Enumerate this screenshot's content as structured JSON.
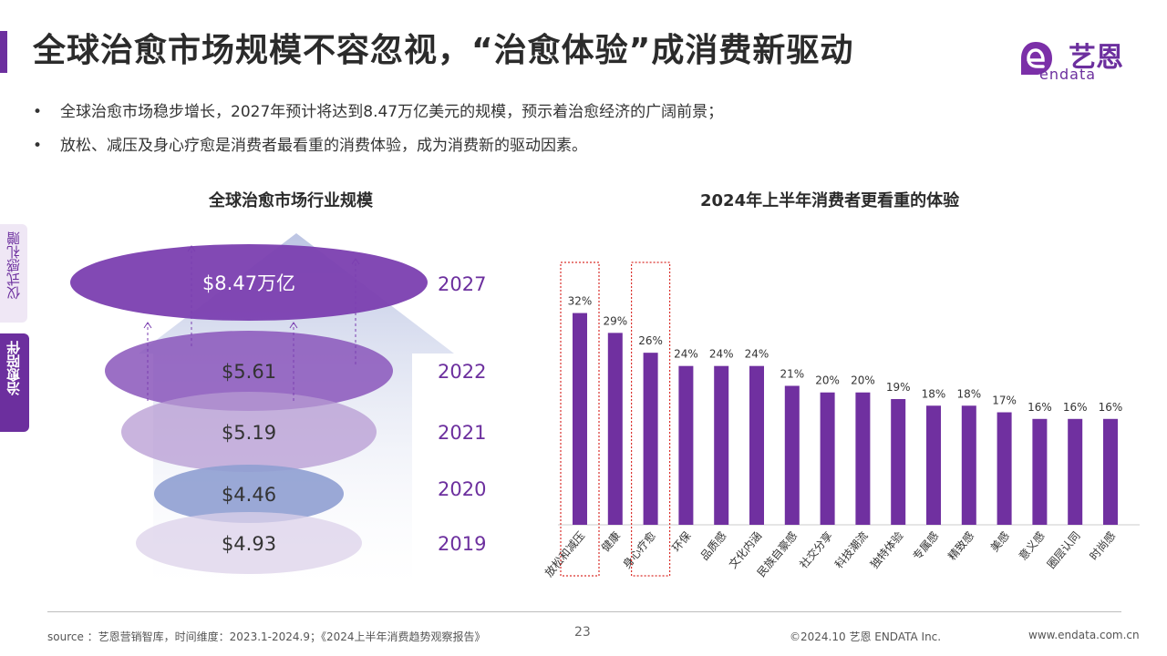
{
  "title": "全球治愈市场规模不容忽视，“治愈体验”成消费新驱动",
  "logo": {
    "cn": "艺恩",
    "en": "endata"
  },
  "bullets": [
    "全球治愈市场稳步增长，2027年预计将达到8.47万亿美元的规模，预示着治愈经济的广阔前景；",
    "放松、减压及身心疗愈是消费者最看重的消费体验，成为消费新的驱动因素。"
  ],
  "bullet_mark": "•",
  "side_tabs": [
    {
      "label": "仪式感礼赠",
      "active": false
    },
    {
      "label": "治愈陪伴",
      "active": true
    }
  ],
  "colors": {
    "accent": "#6c2f9e",
    "bar": "#7030a0",
    "highlight_box": "#d9302c"
  },
  "chart_data": [
    {
      "type": "bar",
      "title": "全球治愈市场行业规模",
      "categories": [
        "2019",
        "2020",
        "2021",
        "2022",
        "2027"
      ],
      "value_labels": [
        "$4.93",
        "$4.46",
        "$5.19",
        "$5.61",
        "$8.47万亿"
      ],
      "values": [
        4.93,
        4.46,
        5.19,
        5.61,
        8.47
      ],
      "unit": "万亿美元"
    },
    {
      "type": "bar",
      "title": "2024年上半年消费者更看重的体验",
      "categories": [
        "放松和减压",
        "健康",
        "身心疗愈",
        "环保",
        "品质感",
        "文化内涵",
        "民族自豪感",
        "社交分享",
        "科技潮流",
        "独特体验",
        "专属感",
        "精致感",
        "美感",
        "意义感",
        "圈层认同",
        "时尚感"
      ],
      "values": [
        32,
        29,
        26,
        24,
        24,
        24,
        21,
        20,
        20,
        19,
        18,
        18,
        17,
        16,
        16,
        16
      ],
      "value_suffix": "%",
      "highlighted": [
        "放松和减压",
        "身心疗愈"
      ],
      "ylim": [
        0,
        38
      ],
      "grid": false,
      "legend": "none"
    }
  ],
  "footer": {
    "source": "source ：艺恩营销智库，时间维度：2023.1-2024.9；《2024上半年消费趋势观察报告》",
    "page": "23",
    "copyright": "©2024.10  艺恩 ENDATA Inc.",
    "url": "www.endata.com.cn"
  }
}
